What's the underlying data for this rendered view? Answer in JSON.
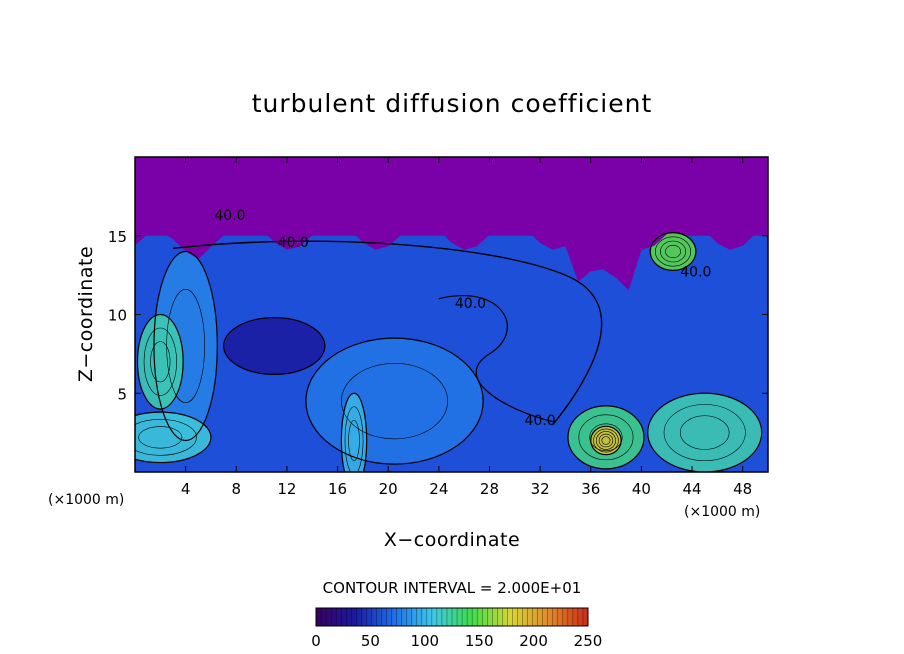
{
  "chart_data": {
    "type": "heatmap",
    "title": "turbulent diffusion coefficient",
    "xlabel": "X−coordinate",
    "ylabel": "Z−coordinate",
    "x_unit": "(×1000 m)",
    "y_unit": "(×1000 m)",
    "xlim": [
      0,
      50
    ],
    "ylim": [
      0,
      20
    ],
    "x_ticks": [
      4,
      8,
      12,
      16,
      20,
      24,
      28,
      32,
      36,
      40,
      44,
      48
    ],
    "y_ticks": [
      5,
      10,
      15
    ],
    "contour_interval_text": "CONTOUR INTERVAL = 2.000E+01",
    "contour_interval": 20,
    "contour_labels": [
      {
        "text": "40.0",
        "x": 7.5,
        "z": 16.0
      },
      {
        "text": "40.0",
        "x": 12.5,
        "z": 14.3
      },
      {
        "text": "40.0",
        "x": 26.5,
        "z": 10.4
      },
      {
        "text": "40.0",
        "x": 32.0,
        "z": 3.0
      },
      {
        "text": "40.0",
        "x": 44.3,
        "z": 12.4
      }
    ],
    "colorbar": {
      "min": 0,
      "max": 250,
      "ticks": [
        0,
        50,
        100,
        150,
        200,
        250
      ],
      "colors": [
        "#3a0060",
        "#1a1aa0",
        "#1f6ee8",
        "#3fc8e8",
        "#3fdc4a",
        "#d6d63a",
        "#e08a2a",
        "#cc2a1a"
      ]
    },
    "field_colors": {
      "low": "#7a00a8",
      "base": "#1e4fd8",
      "mid": "#2b8fe6",
      "light": "#4fb8ec",
      "high": "#46d880",
      "peak": "#e0c43a",
      "max": "#e07a2a"
    },
    "regions": [
      {
        "kind": "band",
        "value": 10,
        "x0": 0,
        "x1": 50,
        "z0": 15,
        "z1": 20
      },
      {
        "kind": "blob",
        "value": 75,
        "x": 20.5,
        "z": 4.5,
        "rx": 7,
        "ry": 4
      },
      {
        "kind": "blob",
        "value": 80,
        "x": 4,
        "z": 8,
        "rx": 2.5,
        "ry": 6
      },
      {
        "kind": "blob",
        "value": 120,
        "x": 2,
        "z": 7,
        "rx": 1.8,
        "ry": 3
      },
      {
        "kind": "blob",
        "value": 130,
        "x": 37.2,
        "z": 2.2,
        "rx": 3,
        "ry": 2
      },
      {
        "kind": "blob",
        "value": 190,
        "x": 37.2,
        "z": 2.0,
        "rx": 1.2,
        "ry": 0.9
      },
      {
        "kind": "blob",
        "value": 120,
        "x": 45,
        "z": 2.5,
        "rx": 4.5,
        "ry": 2.5
      },
      {
        "kind": "blob",
        "value": 150,
        "x": 42.5,
        "z": 14,
        "rx": 1.8,
        "ry": 1.2
      },
      {
        "kind": "blob",
        "value": 35,
        "x": 11,
        "z": 8,
        "rx": 4,
        "ry": 1.8
      },
      {
        "kind": "blob",
        "value": 110,
        "x": 2,
        "z": 2.2,
        "rx": 4,
        "ry": 1.6
      },
      {
        "kind": "blob",
        "value": 100,
        "x": 17.3,
        "z": 2,
        "rx": 1,
        "ry": 3
      }
    ]
  }
}
